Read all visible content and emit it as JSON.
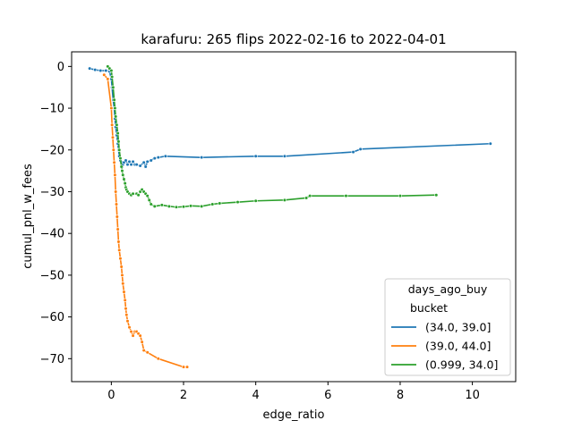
{
  "chart_data": {
    "type": "line",
    "title": "karafuru: 265 flips 2022-02-16 to 2022-04-01",
    "xlabel": "edge_ratio",
    "ylabel": "cumul_pnl_w_fees",
    "xlim": [
      -1.1,
      11.2
    ],
    "ylim": [
      -75.5,
      3.5
    ],
    "xticks": [
      0,
      2,
      4,
      6,
      8,
      10
    ],
    "yticks": [
      0,
      -10,
      -20,
      -30,
      -40,
      -50,
      -60,
      -70
    ],
    "xtick_labels": [
      "0",
      "2",
      "4",
      "6",
      "8",
      "10"
    ],
    "ytick_labels": [
      "0",
      "−10",
      "−20",
      "−30",
      "−40",
      "−50",
      "−60",
      "−70"
    ],
    "grid": false,
    "legend": {
      "title_line1": "days_ago_buy",
      "title_line2": "bucket",
      "placement": "lower-right"
    },
    "series": [
      {
        "name": "(34.0, 39.0]",
        "color": "#1f77b4",
        "x": [
          -0.6,
          -0.45,
          -0.3,
          -0.15,
          -0.05,
          0.0,
          0.02,
          0.05,
          0.08,
          0.1,
          0.12,
          0.15,
          0.18,
          0.2,
          0.22,
          0.25,
          0.28,
          0.3,
          0.32,
          0.35,
          0.4,
          0.45,
          0.5,
          0.55,
          0.6,
          0.65,
          0.7,
          0.8,
          0.9,
          0.95,
          1.0,
          1.1,
          1.2,
          1.3,
          1.5,
          2.5,
          4.0,
          4.8,
          6.7,
          6.9,
          10.5
        ],
        "y": [
          -0.5,
          -0.8,
          -1.0,
          -1.0,
          -1.2,
          -3.0,
          -5.0,
          -8.0,
          -10.0,
          -12.5,
          -14.5,
          -16.5,
          -18.5,
          -20.0,
          -21.5,
          -22.5,
          -23.0,
          -24.0,
          -23.5,
          -23.0,
          -22.5,
          -23.5,
          -22.8,
          -23.5,
          -22.8,
          -23.5,
          -23.5,
          -23.8,
          -23.0,
          -24.0,
          -22.8,
          -22.5,
          -22.0,
          -21.8,
          -21.5,
          -21.8,
          -21.5,
          -21.5,
          -20.5,
          -19.8,
          -18.5
        ]
      },
      {
        "name": "(39.0, 44.0]",
        "color": "#ff7f0e",
        "x": [
          -0.2,
          -0.1,
          0.0,
          0.02,
          0.04,
          0.06,
          0.08,
          0.1,
          0.12,
          0.14,
          0.16,
          0.18,
          0.2,
          0.22,
          0.25,
          0.28,
          0.3,
          0.32,
          0.35,
          0.38,
          0.4,
          0.42,
          0.45,
          0.5,
          0.55,
          0.6,
          0.65,
          0.7,
          0.75,
          0.8,
          0.85,
          0.9,
          1.0,
          1.3,
          2.0,
          2.1
        ],
        "y": [
          -2.0,
          -3.0,
          -10.0,
          -14.0,
          -17.0,
          -20.0,
          -23.0,
          -26.0,
          -30.0,
          -33.0,
          -36.0,
          -39.0,
          -42.0,
          -44.0,
          -46.0,
          -48.0,
          -50.0,
          -52.0,
          -54.0,
          -56.0,
          -58.0,
          -59.5,
          -61.0,
          -62.5,
          -63.5,
          -64.5,
          -63.5,
          -63.5,
          -64.0,
          -64.5,
          -66.0,
          -68.0,
          -68.5,
          -70.0,
          -72.0,
          -72.0
        ]
      },
      {
        "name": "(0.999, 34.0]",
        "color": "#2ca02c",
        "x": [
          -0.1,
          -0.05,
          0.0,
          0.02,
          0.05,
          0.08,
          0.1,
          0.12,
          0.15,
          0.18,
          0.2,
          0.22,
          0.25,
          0.28,
          0.3,
          0.32,
          0.35,
          0.38,
          0.4,
          0.42,
          0.45,
          0.5,
          0.55,
          0.6,
          0.7,
          0.75,
          0.8,
          0.85,
          0.9,
          0.95,
          1.0,
          1.05,
          1.1,
          1.2,
          1.4,
          1.6,
          1.8,
          2.0,
          2.2,
          2.5,
          2.8,
          3.0,
          3.5,
          4.0,
          4.8,
          5.4,
          5.5,
          6.5,
          8.0,
          9.0
        ],
        "y": [
          0.0,
          -0.5,
          -1.0,
          -2.5,
          -5.0,
          -8.0,
          -10.0,
          -12.0,
          -14.0,
          -16.0,
          -18.0,
          -20.0,
          -22.0,
          -24.0,
          -25.0,
          -26.0,
          -27.0,
          -28.0,
          -29.0,
          -29.5,
          -30.0,
          -30.5,
          -30.8,
          -30.5,
          -30.5,
          -30.8,
          -30.0,
          -29.5,
          -30.0,
          -30.5,
          -31.0,
          -32.0,
          -33.0,
          -33.5,
          -33.2,
          -33.5,
          -33.7,
          -33.6,
          -33.4,
          -33.5,
          -33.0,
          -32.8,
          -32.5,
          -32.2,
          -32.0,
          -31.5,
          -31.0,
          -31.0,
          -31.0,
          -30.8
        ]
      }
    ]
  }
}
